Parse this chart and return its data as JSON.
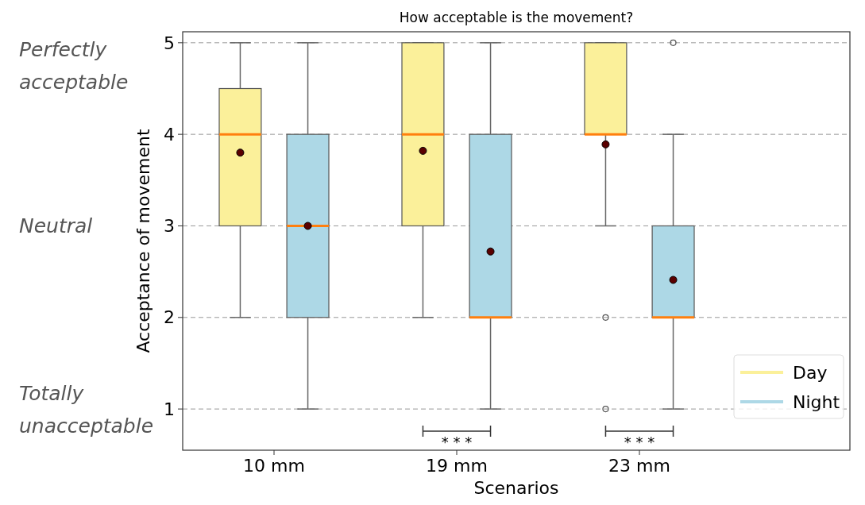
{
  "chart_data": {
    "type": "box",
    "title": "How acceptable is the movement?",
    "xlabel": "Scenarios",
    "ylabel": "Acceptance of movement",
    "categories": [
      "10 mm",
      "19 mm",
      "23 mm"
    ],
    "series": [
      {
        "name": "Day",
        "color": "#fbf09a",
        "boxes": [
          {
            "low": 2,
            "q1": 3,
            "median": 4,
            "q3": 4.5,
            "high": 5,
            "mean": 3.8
          },
          {
            "low": 2,
            "q1": 3,
            "median": 4,
            "q3": 5,
            "high": 5,
            "mean": 3.82
          },
          {
            "low": 3,
            "q1": 4,
            "median": 4,
            "q3": 5,
            "high": 5,
            "mean": 3.89,
            "outliers": [
              2,
              1
            ]
          }
        ]
      },
      {
        "name": "Night",
        "color": "#add8e6",
        "boxes": [
          {
            "low": 1,
            "q1": 2,
            "median": 3,
            "q3": 4,
            "high": 5,
            "mean": 3.0
          },
          {
            "low": 1,
            "q1": 2,
            "median": 2,
            "q3": 4,
            "high": 5,
            "mean": 2.72
          },
          {
            "low": 1,
            "q1": 2,
            "median": 2,
            "q3": 3,
            "high": 4,
            "mean": 2.41,
            "outliers": [
              5
            ]
          }
        ]
      }
    ],
    "ylim": [
      0.55,
      5.12
    ],
    "yticks": [
      1,
      2,
      3,
      4,
      5
    ],
    "grid": "y",
    "legend": "bottom right",
    "annotations": [
      "Perfectly acceptable",
      "Neutral",
      "Totally unacceptable",
      "* * *",
      "* * *"
    ]
  }
}
